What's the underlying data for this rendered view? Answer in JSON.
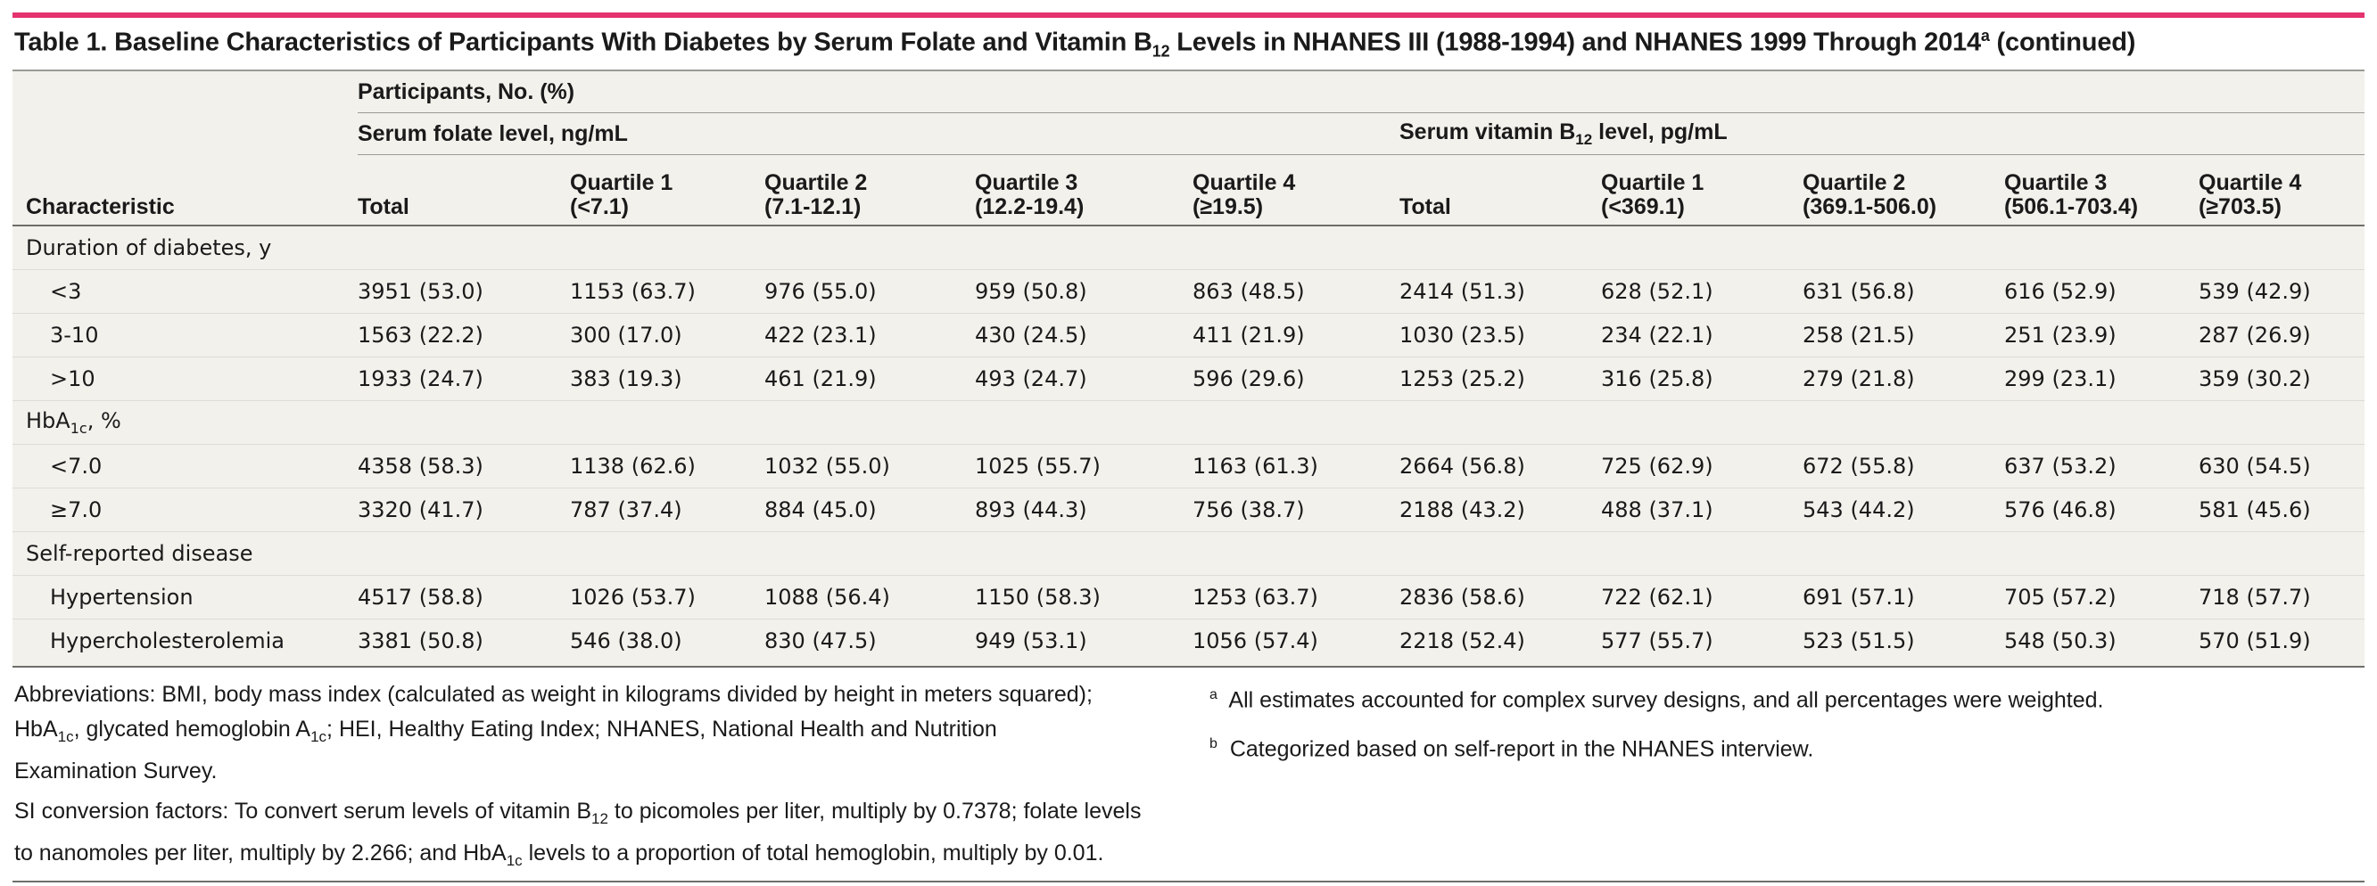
{
  "title": {
    "prefix": "Table 1. Baseline Characteristics of Participants With Diabetes by Serum Folate and Vitamin B",
    "sub": "12",
    "middle": " Levels in NHANES III (1988-1994) and NHANES 1999 Through 2014",
    "sup": "a",
    "suffix": " (continued)"
  },
  "header": {
    "characteristic": "Characteristic",
    "participants": "Participants, No. (%)",
    "folate_group": "Serum folate level, ng/mL",
    "b12_group_prefix": "Serum vitamin B",
    "b12_group_sub": "12",
    "b12_group_suffix": " level, pg/mL",
    "folate_cols": [
      {
        "line1": "Total",
        "line2": ""
      },
      {
        "line1": "Quartile 1",
        "line2": "(<7.1)"
      },
      {
        "line1": "Quartile 2",
        "line2": "(7.1-12.1)"
      },
      {
        "line1": "Quartile 3",
        "line2": "(12.2-19.4)"
      },
      {
        "line1": "Quartile 4",
        "line2": "(≥19.5)"
      }
    ],
    "b12_cols": [
      {
        "line1": "Total",
        "line2": ""
      },
      {
        "line1": "Quartile 1",
        "line2": "(<369.1)"
      },
      {
        "line1": "Quartile 2",
        "line2": "(369.1-506.0)"
      },
      {
        "line1": "Quartile 3",
        "line2": "(506.1-703.4)"
      },
      {
        "line1": "Quartile 4",
        "line2": "(≥703.5)"
      }
    ]
  },
  "rows": [
    {
      "type": "section",
      "label": "Duration of diabetes, y"
    },
    {
      "type": "data",
      "label": "<3",
      "values": [
        "3951 (53.0)",
        "1153 (63.7)",
        "976 (55.0)",
        "959 (50.8)",
        "863 (48.5)",
        "2414 (51.3)",
        "628 (52.1)",
        "631 (56.8)",
        "616 (52.9)",
        "539 (42.9)"
      ]
    },
    {
      "type": "data",
      "label": "3-10",
      "values": [
        "1563 (22.2)",
        "300 (17.0)",
        "422 (23.1)",
        "430 (24.5)",
        "411 (21.9)",
        "1030 (23.5)",
        "234 (22.1)",
        "258 (21.5)",
        "251 (23.9)",
        "287 (26.9)"
      ]
    },
    {
      "type": "data",
      "label": ">10",
      "values": [
        "1933 (24.7)",
        "383 (19.3)",
        "461 (21.9)",
        "493 (24.7)",
        "596 (29.6)",
        "1253 (25.2)",
        "316 (25.8)",
        "279 (21.8)",
        "299 (23.1)",
        "359 (30.2)"
      ]
    },
    {
      "type": "section",
      "label": "HbA",
      "label_sub": "1c",
      "label_suffix": ", %"
    },
    {
      "type": "data",
      "label": "<7.0",
      "values": [
        "4358 (58.3)",
        "1138 (62.6)",
        "1032 (55.0)",
        "1025 (55.7)",
        "1163 (61.3)",
        "2664 (56.8)",
        "725 (62.9)",
        "672 (55.8)",
        "637 (53.2)",
        "630 (54.5)"
      ]
    },
    {
      "type": "data",
      "label": "≥7.0",
      "values": [
        "3320 (41.7)",
        "787 (37.4)",
        "884 (45.0)",
        "893 (44.3)",
        "756 (38.7)",
        "2188 (43.2)",
        "488 (37.1)",
        "543 (44.2)",
        "576 (46.8)",
        "581 (45.6)"
      ]
    },
    {
      "type": "section",
      "label": "Self-reported disease"
    },
    {
      "type": "data",
      "label": "Hypertension",
      "values": [
        "4517 (58.8)",
        "1026 (53.7)",
        "1088 (56.4)",
        "1150 (58.3)",
        "1253 (63.7)",
        "2836 (58.6)",
        "722 (62.1)",
        "691 (57.1)",
        "705 (57.2)",
        "718 (57.7)"
      ]
    },
    {
      "type": "data",
      "label": "Hypercholesterolemia",
      "values": [
        "3381 (50.8)",
        "546 (38.0)",
        "830 (47.5)",
        "949 (53.1)",
        "1056 (57.4)",
        "2218 (52.4)",
        "577 (55.7)",
        "523 (51.5)",
        "548 (50.3)",
        "570 (51.9)"
      ]
    }
  ],
  "notes": {
    "abbrev_a": "Abbreviations: BMI, body mass index (calculated as weight in kilograms divided by height in meters squared);",
    "abbrev_b1": "HbA",
    "abbrev_b_sub": "1c",
    "abbrev_b2": ", glycated hemoglobin A",
    "abbrev_b_sub2": "1c",
    "abbrev_b3": "; HEI, Healthy Eating Index; NHANES, National Health and Nutrition",
    "abbrev_c": "Examination Survey.",
    "si_a1": "SI conversion factors: To convert serum levels of vitamin B",
    "si_a_sub": "12",
    "si_a2": " to picomoles per liter, multiply by 0.7378; folate levels",
    "si_b1": "to nanomoles per liter, multiply by 2.266; and HbA",
    "si_b_sub": "1c",
    "si_b2": " levels to a proportion of total hemoglobin, multiply by 0.01.",
    "fn_a_mark": "a",
    "fn_a": "All estimates accounted for complex survey designs, and all percentages were weighted.",
    "fn_b_mark": "b",
    "fn_b": "Categorized based on self-report in the NHANES interview."
  }
}
